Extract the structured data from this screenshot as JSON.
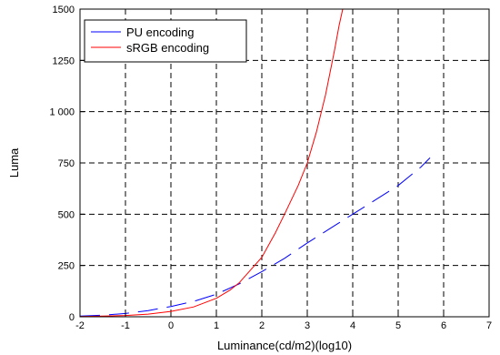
{
  "chart_data": {
    "type": "line",
    "title": "",
    "xlabel": "Luminance(cd/m2)(log10)",
    "ylabel": "Luma",
    "xlim": [
      -2,
      7
    ],
    "ylim": [
      0,
      1500
    ],
    "xticks": [
      -2,
      -1,
      0,
      1,
      2,
      3,
      4,
      5,
      6,
      7
    ],
    "xtick_labels": [
      "-2",
      "-1",
      "0",
      "1",
      "2",
      "3",
      "4",
      "5",
      "6",
      "7"
    ],
    "yticks": [
      0,
      250,
      500,
      750,
      1000,
      1250,
      1500
    ],
    "ytick_labels": [
      "0",
      "250",
      "500",
      "750",
      "1 000",
      "1250",
      "1500"
    ],
    "grid": true,
    "grid_style": "dashed",
    "legend_position": "top-left",
    "series": [
      {
        "name": "PU encoding",
        "color": "#0000ff",
        "line_style": "long-dash",
        "x": [
          -2.0,
          -1.5,
          -1.0,
          -0.5,
          0.0,
          0.5,
          1.0,
          1.5,
          2.0,
          2.5,
          3.0,
          3.5,
          4.0,
          4.5,
          5.0,
          5.5,
          5.7
        ],
        "y": [
          3,
          8,
          16,
          30,
          50,
          75,
          110,
          160,
          220,
          285,
          360,
          430,
          500,
          570,
          640,
          730,
          775
        ]
      },
      {
        "name": "sRGB encoding",
        "color": "#ff0000",
        "line_style": "solid",
        "x": [
          -2.0,
          -1.5,
          -1.0,
          -0.5,
          0.0,
          0.5,
          1.0,
          1.3,
          1.5,
          2.0,
          2.3,
          2.5,
          2.8,
          3.0,
          3.2,
          3.4,
          3.6,
          3.7,
          3.78
        ],
        "y": [
          1,
          3,
          6,
          13,
          26,
          48,
          90,
          130,
          165,
          290,
          410,
          500,
          640,
          750,
          900,
          1080,
          1300,
          1420,
          1500
        ]
      }
    ]
  }
}
